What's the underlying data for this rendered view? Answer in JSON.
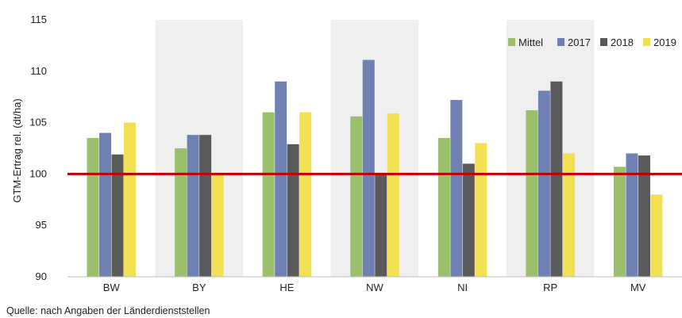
{
  "chart_data": {
    "type": "bar",
    "ylabel": "GTM-Ertrag rel. (dt/ha)",
    "ylim": [
      90,
      115
    ],
    "yticks": [
      90,
      95,
      100,
      105,
      110,
      115
    ],
    "categories": [
      "BW",
      "BY",
      "HE",
      "NW",
      "NI",
      "RP",
      "MV"
    ],
    "series": [
      {
        "name": "Mittel",
        "color": "#9bbf6a",
        "values": [
          103.5,
          102.5,
          106.0,
          105.6,
          103.5,
          106.2,
          100.7
        ]
      },
      {
        "name": "2017",
        "color": "#6f80b3",
        "values": [
          104.0,
          103.8,
          109.0,
          111.1,
          107.2,
          108.1,
          102.0
        ]
      },
      {
        "name": "2018",
        "color": "#5a5a5a",
        "values": [
          101.9,
          103.8,
          102.9,
          100.0,
          101.0,
          109.0,
          101.8
        ]
      },
      {
        "name": "2019",
        "color": "#f2e052",
        "values": [
          105.0,
          100.0,
          106.0,
          105.9,
          103.0,
          102.0,
          98.0
        ]
      }
    ],
    "reference_line": {
      "value": 100,
      "color": "#c00000"
    },
    "band_colors": [
      "#ffffff",
      "#efefef"
    ],
    "legend_position": "top-right",
    "grid": false,
    "source": "Quelle: nach Angaben der Länderdienststellen"
  }
}
